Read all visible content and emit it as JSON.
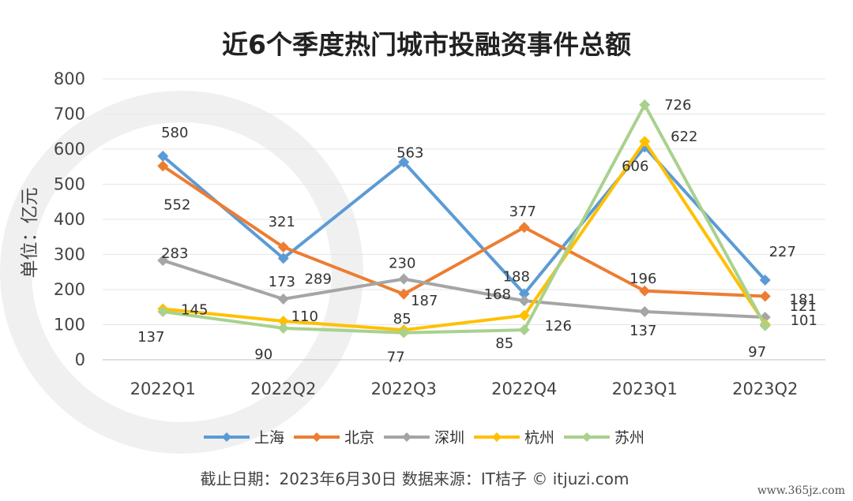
{
  "chart_data": {
    "type": "line",
    "title": "近6个季度热门城市投融资事件总额",
    "ylabel": "单位：亿元",
    "xlabel": "",
    "categories": [
      "2022Q1",
      "2022Q2",
      "2022Q3",
      "2022Q4",
      "2023Q1",
      "2023Q2"
    ],
    "ylim": [
      0,
      800
    ],
    "yticks": [
      0,
      100,
      200,
      300,
      400,
      500,
      600,
      700,
      800
    ],
    "grid": true,
    "legend_position": "bottom",
    "series": [
      {
        "name": "上海",
        "color": "#5b9bd5",
        "values": [
          580,
          289,
          563,
          188,
          606,
          227
        ]
      },
      {
        "name": "北京",
        "color": "#ed7d31",
        "values": [
          552,
          321,
          187,
          377,
          196,
          181
        ]
      },
      {
        "name": "深圳",
        "color": "#a5a5a5",
        "values": [
          283,
          173,
          230,
          168,
          137,
          121
        ]
      },
      {
        "name": "杭州",
        "color": "#ffc000",
        "values": [
          145,
          110,
          85,
          126,
          622,
          101
        ]
      },
      {
        "name": "苏州",
        "color": "#a9d18e",
        "values": [
          137,
          90,
          77,
          85,
          726,
          97
        ]
      }
    ]
  },
  "footer": {
    "source": "截止日期：2023年6月30日   数据来源：IT桔子 © itjuzi.com"
  },
  "corner_mark": "www.365jz.com"
}
